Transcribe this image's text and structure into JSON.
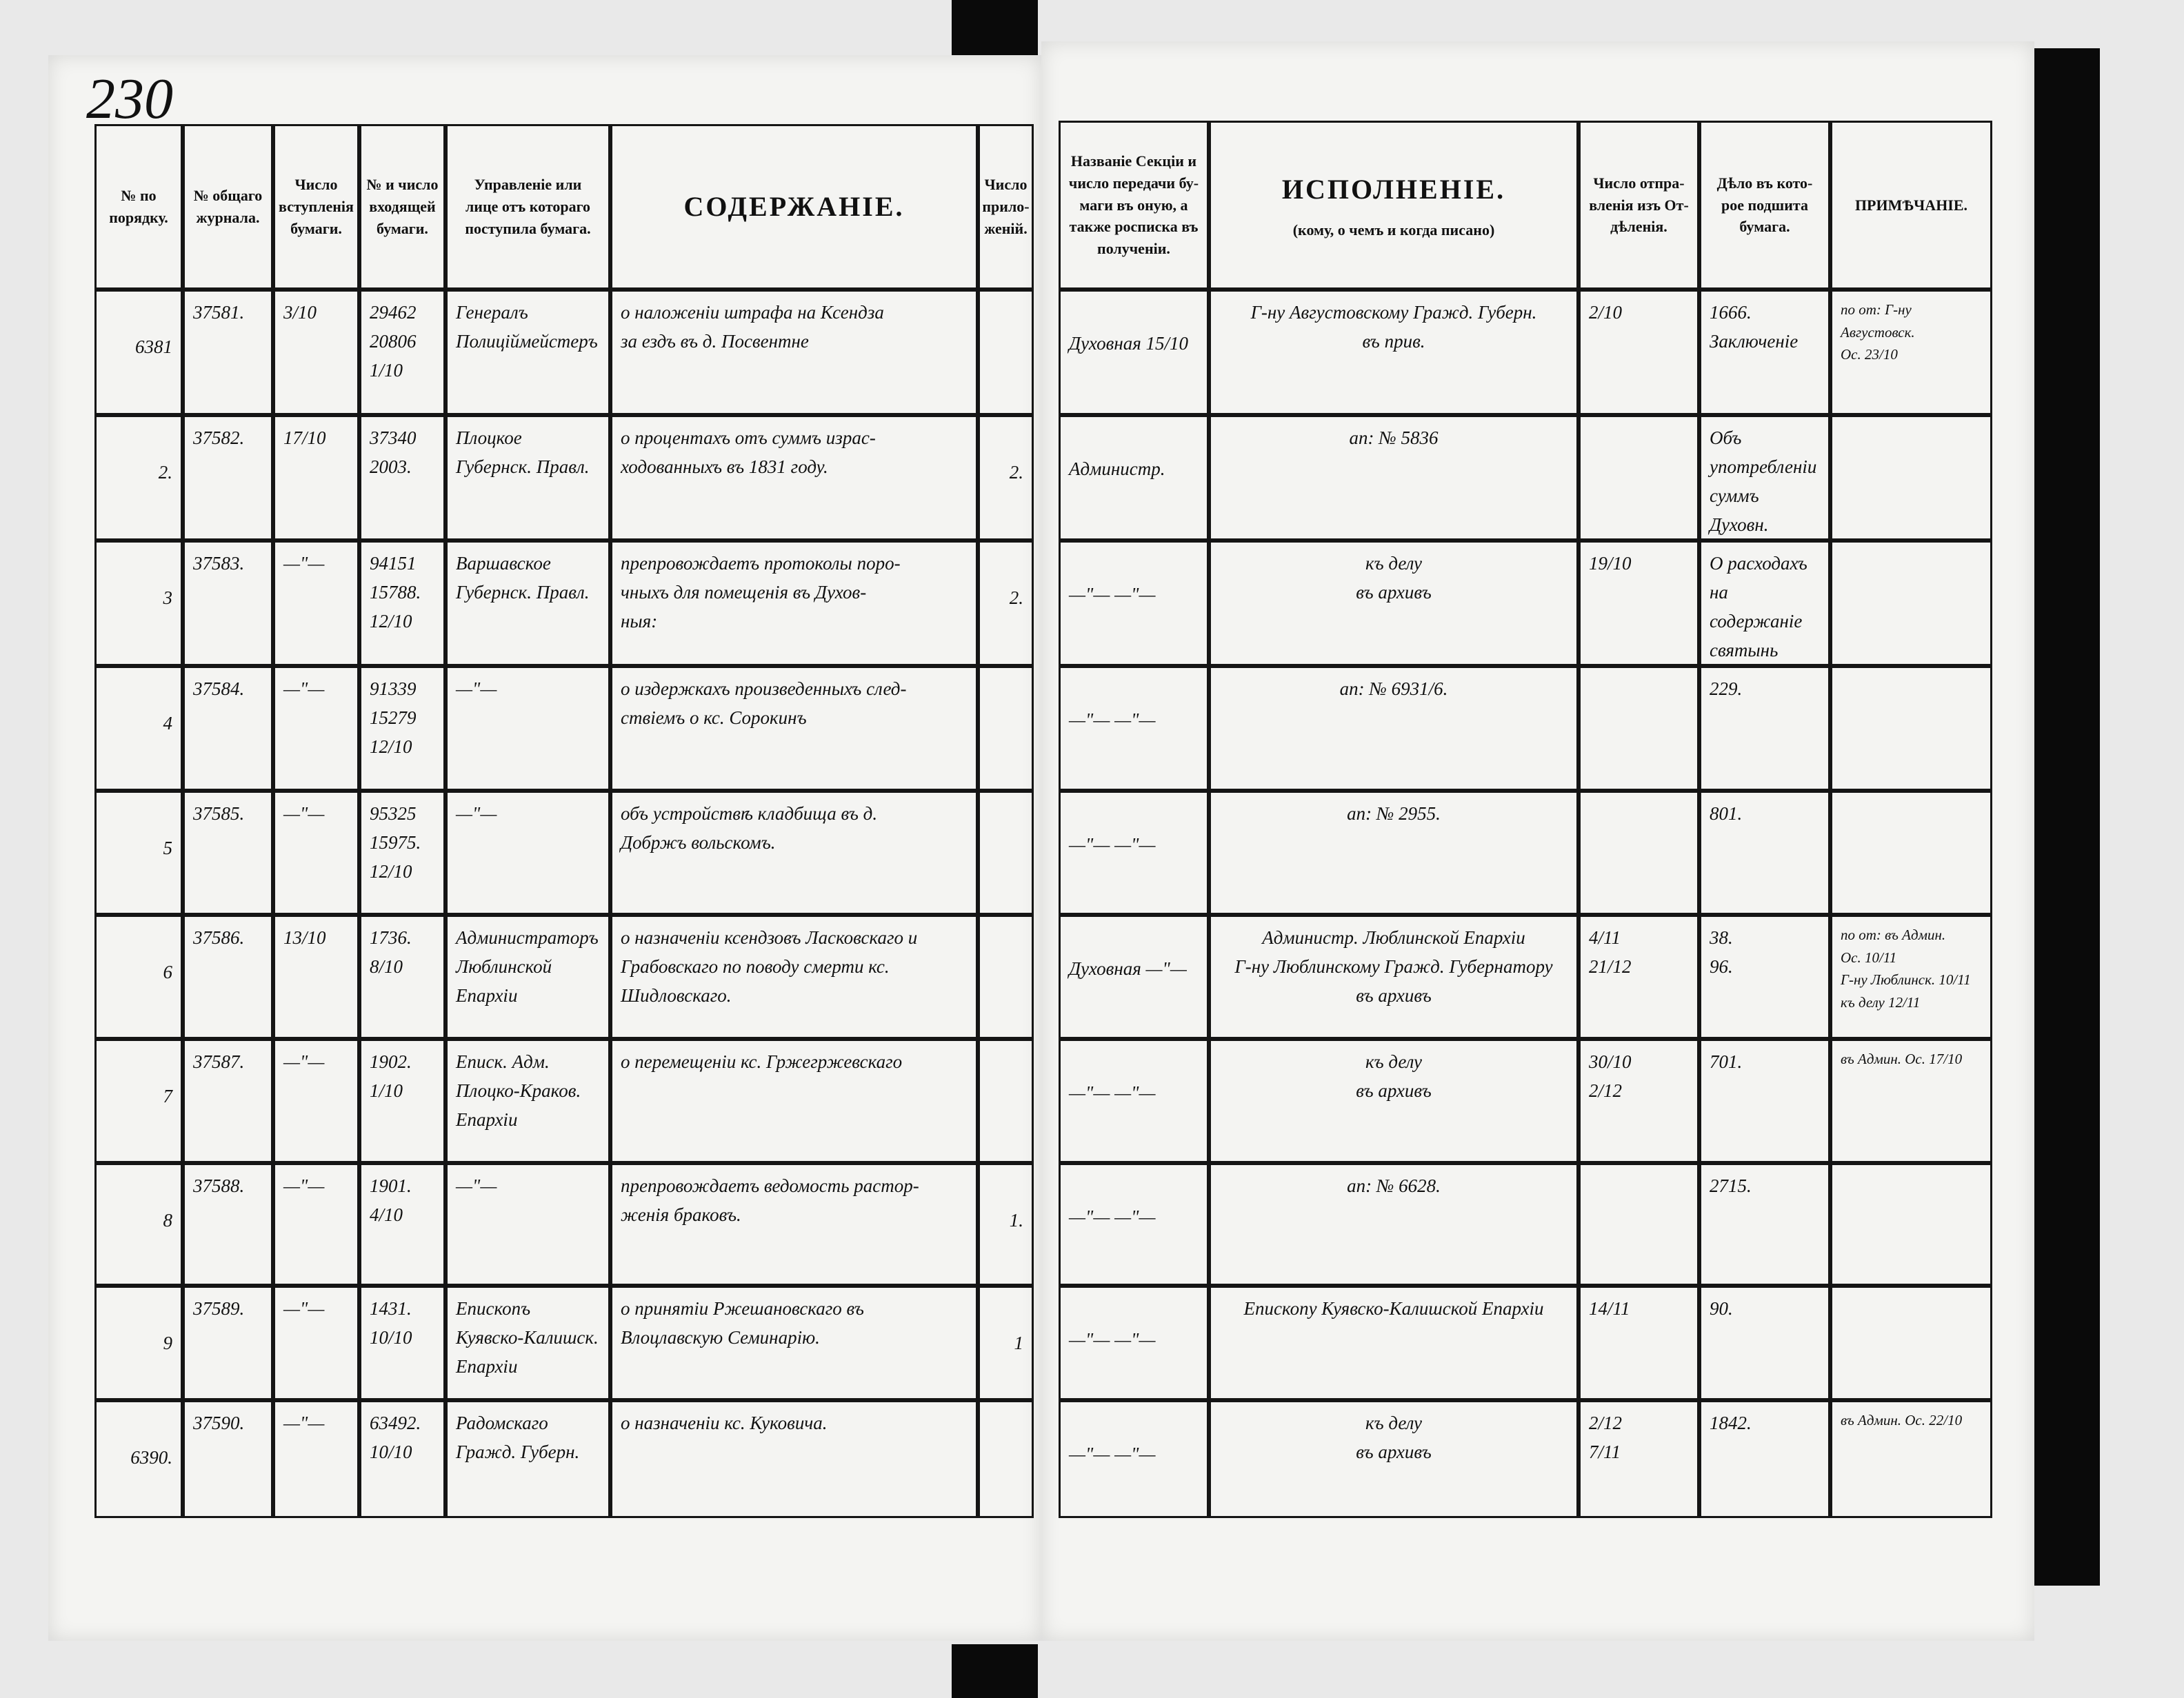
{
  "page_number": "230",
  "left_headers": [
    "№ по\nпорядку.",
    "№ общаго\nжурнала.",
    "Число\nвступленія\nбумаги.",
    "№ и число\nвходящей\nбумаги.",
    "Управленіе или\nлице отъ котораго\nпоступила бумага.",
    "СОДЕРЖАНІЕ.",
    "Число\nприло-\nженій."
  ],
  "right_headers": [
    "Названіе Секціи и\nчисло передачи бу-\nмаги въ оную, а\nтакже росписка въ\nполученіи.",
    "ИСПОЛНЕНІЕ.",
    "Число отпра-\nвленія изъ От-\nдѣленія.",
    "Дѣло въ кото-\nрое подшита\nбумага.",
    "ПРИМѢЧАНІЕ."
  ],
  "execution_subtitle": "(кому, о чемъ и когда писано)",
  "rows": [
    {
      "left": [
        "6381",
        "37581.",
        "3/10",
        "29462\n20806\n1/10",
        "Генералъ\nПолицiймейстеръ",
        "о наложеніи штрафа на Ксендза\nза ездъ въ д. Посвентне",
        ""
      ],
      "right": [
        "Духовная 15/10",
        "Г-ну Августовскому Гражд. Губерн.\nвъ прив.",
        "2/10",
        "1666.\nЗаключеніе",
        "по от: Г-ну Августовск.\nОс. 23/10"
      ]
    },
    {
      "left": [
        "2.",
        "37582.",
        "17/10",
        "37340\n2003.",
        "Плоцкое\nГубернск. Правл.",
        "о процентахъ отъ суммъ израс-\nходованныхъ въ 1831 году.",
        "2."
      ],
      "right": [
        "Администр.",
        "ап: № 5836",
        "",
        "Объ употребленіи\nсуммъ Духовн.",
        ""
      ]
    },
    {
      "left": [
        "3",
        "37583.",
        "—\"—",
        "94151\n15788.\n12/10",
        "Варшавское\nГубернск. Правл.",
        "препровождаетъ протоколы поро-\nчныхъ для помещенія въ Духов-\nныя:",
        "2."
      ],
      "right": [
        "—\"— —\"—",
        "къ делу\nвъ архивъ",
        "19/10",
        "О расходахъ\nна содержаніе\nсвятынь Духов.",
        ""
      ]
    },
    {
      "left": [
        "4",
        "37584.",
        "—\"—",
        "91339\n15279\n12/10",
        "—\"—",
        "о издержкахъ произведенныхъ след-\nствіемъ о кс. Сорокинъ",
        ""
      ],
      "right": [
        "—\"— —\"—",
        "ап: № 6931/6.",
        "",
        "229.",
        ""
      ]
    },
    {
      "left": [
        "5",
        "37585.",
        "—\"—",
        "95325\n15975.\n12/10",
        "—\"—",
        "объ устройствѣ кладбища въ д.\nДобржъ вольскомъ.",
        ""
      ],
      "right": [
        "—\"— —\"—",
        "ап: № 2955.",
        "",
        "801.",
        ""
      ]
    },
    {
      "left": [
        "6",
        "37586.",
        "13/10",
        "1736.\n8/10",
        "Администраторъ\nЛюблинской\nЕпархіи",
        "о назначеніи ксендзовъ Ласковскаго и\nГрабовскаго по поводу смерти кс.\nШидловскаго.",
        ""
      ],
      "right": [
        "Духовная —\"—",
        "Администр. Люблинской Епархіи\nГ-ну Люблинскому Гражд. Губернатору\nвъ архивъ",
        "4/11\n21/12",
        "38.\n96.",
        "по от: въ Админ.\nОс. 10/11\nГ-ну Люблинск. 10/11\nкъ делу 12/11"
      ]
    },
    {
      "left": [
        "7",
        "37587.",
        "—\"—",
        "1902.\n1/10",
        "Еписк. Адм.\nПлоцко-Краков.\nЕпархіи",
        "о перемещеніи кс. Гржегржевскаго",
        ""
      ],
      "right": [
        "—\"— —\"—",
        "къ делу\nвъ архивъ",
        "30/10\n2/12",
        "701.",
        "въ Админ. Ос. 17/10"
      ]
    },
    {
      "left": [
        "8",
        "37588.",
        "—\"—",
        "1901.\n4/10",
        "—\"—",
        "препровождаетъ ведомость растор-\nженія браковъ.",
        "1."
      ],
      "right": [
        "—\"— —\"—",
        "ап: № 6628.",
        "",
        "2715.",
        ""
      ]
    },
    {
      "left": [
        "9",
        "37589.",
        "—\"—",
        "1431.\n10/10",
        "Епископъ\nКуявско-Калишск.\nЕпархіи",
        "о принятіи Ржешановскаго въ\nВлоцлавскую Семинарію.",
        "1"
      ],
      "right": [
        "—\"— —\"—",
        "Епископу Куявско-Калишской Епархіи",
        "14/11",
        "90.",
        ""
      ]
    },
    {
      "left": [
        "6390.",
        "37590.",
        "—\"—",
        "63492.\n10/10",
        "Радомскаго\nГражд. Губерн.",
        "о назначеніи кс. Куковича.",
        ""
      ],
      "right": [
        "—\"— —\"—",
        "къ делу\nвъ архивъ",
        "2/12\n7/11",
        "1842.",
        "въ Админ. Ос. 22/10"
      ]
    }
  ]
}
